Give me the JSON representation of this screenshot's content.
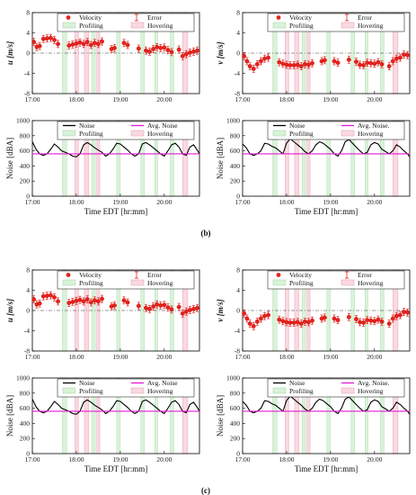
{
  "panel_labels": [
    "(b)",
    "(c)"
  ],
  "colors": {
    "velocity": "#e8231d",
    "noise": "#000000",
    "avg_noise": "#e619d4",
    "profiling": "#d9f2d9",
    "hovering": "#f9d9e0"
  },
  "chart_data": [
    {
      "type": "scatter",
      "ylabel": "u [m/s]",
      "xlabel": "",
      "ylim": [
        -8,
        8
      ],
      "yticks": [
        "8",
        "4",
        "0",
        "-4",
        "-8"
      ],
      "xticks": [
        "17:00",
        "18:00",
        "19:00",
        "20:00"
      ],
      "xlim": [
        "17:00",
        "20:48"
      ],
      "legend": [
        "Velocity",
        "Error",
        "Profiling",
        "Hovering"
      ],
      "series": [
        {
          "x": [
            "17:02",
            "17:06",
            "17:10",
            "17:15",
            "17:20",
            "17:25",
            "17:30",
            "17:35",
            "17:50",
            "17:55",
            "18:00",
            "18:05",
            "18:10",
            "18:15",
            "18:20",
            "18:25",
            "18:30",
            "18:35",
            "18:48",
            "18:52",
            "19:05",
            "19:10",
            "19:25",
            "19:35",
            "19:40",
            "19:45",
            "19:50",
            "19:55",
            "20:00",
            "20:05",
            "20:10",
            "20:20",
            "20:25",
            "20:30",
            "20:35",
            "20:40",
            "20:45"
          ],
          "values": [
            2.2,
            1.2,
            1.4,
            2.8,
            2.9,
            3.0,
            2.6,
            1.8,
            1.5,
            1.7,
            1.9,
            2.1,
            1.8,
            2.2,
            1.6,
            2.0,
            1.8,
            2.3,
            0.8,
            1.0,
            2.0,
            1.6,
            0.9,
            0.5,
            0.3,
            0.8,
            1.2,
            1.0,
            1.1,
            0.6,
            0.2,
            0.7,
            -0.6,
            -0.2,
            0.1,
            0.3,
            0.5
          ]
        }
      ]
    },
    {
      "type": "scatter",
      "ylabel": "v [m/s]",
      "xlabel": "",
      "ylim": [
        -8,
        8
      ],
      "yticks": [
        "8",
        "4",
        "0",
        "-4",
        "-8"
      ],
      "xticks": [
        "17:00",
        "18:00",
        "19:00",
        "20:00"
      ],
      "xlim": [
        "17:00",
        "20:48"
      ],
      "legend": [
        "Velocity",
        "Error",
        "Profiling",
        "Hovering"
      ],
      "series": [
        {
          "x": [
            "17:02",
            "17:06",
            "17:10",
            "17:15",
            "17:20",
            "17:25",
            "17:30",
            "17:35",
            "17:50",
            "17:55",
            "18:00",
            "18:05",
            "18:10",
            "18:15",
            "18:20",
            "18:25",
            "18:30",
            "18:35",
            "18:48",
            "18:52",
            "19:05",
            "19:10",
            "19:25",
            "19:35",
            "19:40",
            "19:45",
            "19:50",
            "19:55",
            "20:00",
            "20:05",
            "20:10",
            "20:20",
            "20:25",
            "20:30",
            "20:35",
            "20:40",
            "20:45"
          ],
          "values": [
            -0.6,
            -1.6,
            -2.6,
            -3.1,
            -2.2,
            -1.6,
            -1.1,
            -0.9,
            -1.8,
            -2.1,
            -2.3,
            -2.4,
            -2.4,
            -2.3,
            -2.6,
            -2.2,
            -2.3,
            -2.0,
            -1.6,
            -1.4,
            -1.6,
            -1.9,
            -1.3,
            -1.7,
            -2.3,
            -2.4,
            -1.9,
            -2.0,
            -2.1,
            -1.8,
            -2.2,
            -2.6,
            -1.6,
            -1.1,
            -0.9,
            -0.3,
            -0.4
          ]
        }
      ]
    },
    {
      "type": "line",
      "ylabel": "Noise [dBA]",
      "xlabel": "Time EDT [hr:mm]",
      "ylim": [
        0,
        1000
      ],
      "yticks": [
        "1000",
        "800",
        "600",
        "400",
        "200",
        "0"
      ],
      "xticks": [
        "17:00",
        "18:00",
        "19:00",
        "20:00"
      ],
      "xlim": [
        "17:00",
        "20:48"
      ],
      "legend": [
        "Noise",
        "Avg. Noise",
        "Profiling",
        "Hovering"
      ],
      "avg": 560,
      "series": [
        {
          "x": [
            "17:00",
            "17:05",
            "17:10",
            "17:15",
            "17:20",
            "17:25",
            "17:30",
            "17:35",
            "17:40",
            "17:45",
            "17:50",
            "17:55",
            "18:00",
            "18:05",
            "18:10",
            "18:15",
            "18:20",
            "18:25",
            "18:30",
            "18:35",
            "18:40",
            "18:45",
            "18:50",
            "18:55",
            "19:00",
            "19:05",
            "19:10",
            "19:15",
            "19:20",
            "19:25",
            "19:30",
            "19:35",
            "19:40",
            "19:45",
            "19:50",
            "19:55",
            "20:00",
            "20:05",
            "20:10",
            "20:15",
            "20:20",
            "20:25",
            "20:30",
            "20:35",
            "20:40",
            "20:45",
            "20:48"
          ],
          "values": [
            720,
            620,
            560,
            540,
            560,
            620,
            690,
            650,
            600,
            580,
            560,
            530,
            520,
            560,
            680,
            710,
            680,
            640,
            610,
            580,
            530,
            560,
            620,
            700,
            690,
            650,
            610,
            560,
            530,
            560,
            690,
            710,
            680,
            640,
            600,
            560,
            530,
            600,
            680,
            700,
            650,
            560,
            540,
            650,
            680,
            610,
            560
          ]
        }
      ]
    },
    {
      "type": "line",
      "ylabel": "Noise [dBA]",
      "xlabel": "Time EDT [hr:mm]",
      "ylim": [
        0,
        1000
      ],
      "yticks": [
        "1000",
        "800",
        "600",
        "400",
        "200",
        "0"
      ],
      "xticks": [
        "17:00",
        "18:00",
        "19:00",
        "20:00"
      ],
      "xlim": [
        "17:00",
        "20:48"
      ],
      "legend": [
        "Noise",
        "Avg. Noise.",
        "Profiling",
        "Hovering"
      ],
      "avg": 560,
      "series": [
        {
          "x": [
            "17:00",
            "17:05",
            "17:10",
            "17:15",
            "17:20",
            "17:25",
            "17:30",
            "17:35",
            "17:40",
            "17:45",
            "17:50",
            "17:55",
            "18:00",
            "18:05",
            "18:10",
            "18:15",
            "18:20",
            "18:25",
            "18:30",
            "18:35",
            "18:40",
            "18:45",
            "18:50",
            "18:55",
            "19:00",
            "19:05",
            "19:10",
            "19:15",
            "19:20",
            "19:25",
            "19:30",
            "19:35",
            "19:40",
            "19:45",
            "19:50",
            "19:55",
            "20:00",
            "20:05",
            "20:10",
            "20:15",
            "20:20",
            "20:25",
            "20:30",
            "20:35",
            "20:40",
            "20:45",
            "20:48"
          ],
          "values": [
            690,
            640,
            560,
            540,
            560,
            600,
            700,
            690,
            660,
            640,
            600,
            560,
            700,
            760,
            720,
            680,
            640,
            590,
            560,
            600,
            680,
            720,
            700,
            660,
            620,
            560,
            530,
            600,
            720,
            750,
            700,
            650,
            600,
            560,
            580,
            680,
            710,
            690,
            620,
            590,
            560,
            600,
            680,
            650,
            600,
            560,
            520
          ]
        }
      ]
    }
  ],
  "bands": {
    "profiling": [
      [
        "17:41",
        "17:47"
      ],
      [
        "18:21",
        "18:26"
      ],
      [
        "18:55",
        "19:00"
      ],
      [
        "19:28",
        "19:33"
      ],
      [
        "19:47",
        "19:51"
      ],
      [
        "20:08",
        "20:13"
      ]
    ],
    "hovering": [
      [
        "17:58",
        "18:03"
      ],
      [
        "18:11",
        "18:17"
      ],
      [
        "18:28",
        "18:32"
      ],
      [
        "20:25",
        "20:32"
      ]
    ]
  }
}
